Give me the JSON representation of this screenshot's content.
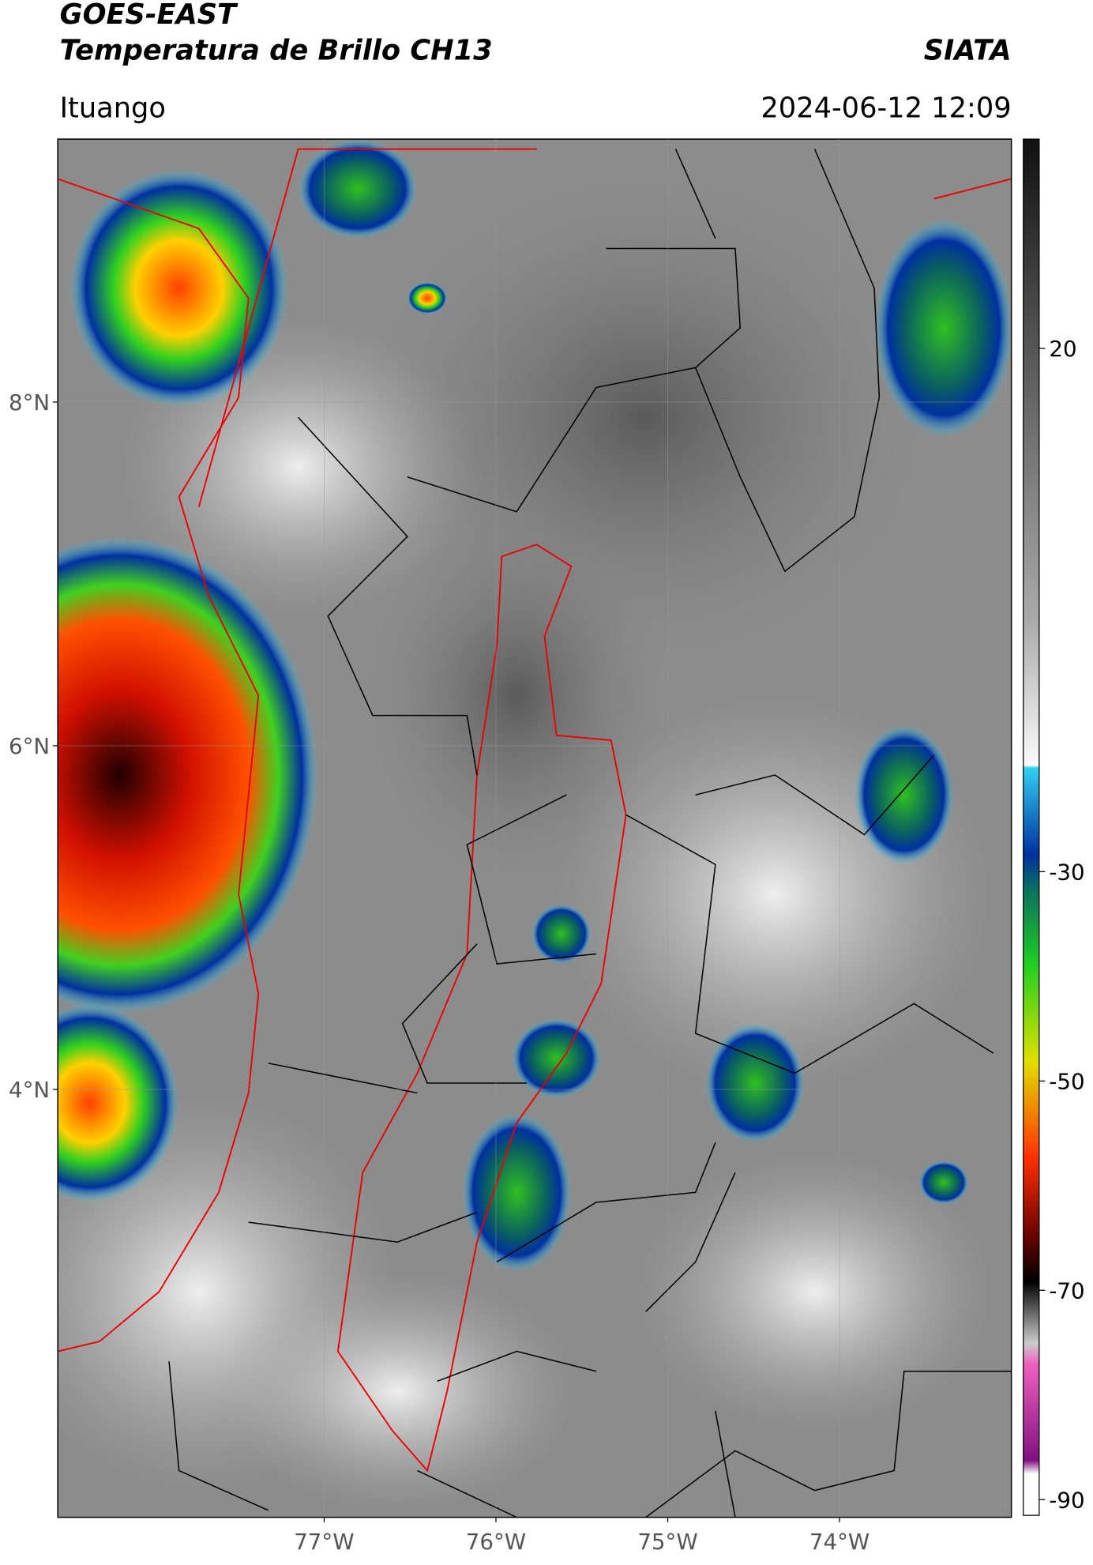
{
  "header": {
    "title_line1": "GOES-EAST",
    "title_line2": "Temperatura de Brillo CH13",
    "agency": "SIATA",
    "location": "Ituango",
    "timestamp": "2024-06-12 12:09"
  },
  "map": {
    "xlim": [
      -78.55,
      -73.0
    ],
    "ylim": [
      1.51,
      9.53
    ],
    "lat_ticks": [
      {
        "value": 8,
        "label": "8°N"
      },
      {
        "value": 6,
        "label": "6°N"
      },
      {
        "value": 4,
        "label": "4°N"
      }
    ],
    "lon_ticks": [
      {
        "value": -77,
        "label": "77°W"
      },
      {
        "value": -76,
        "label": "76°W"
      },
      {
        "value": -75,
        "label": "75°W"
      },
      {
        "value": -74,
        "label": "74°W"
      }
    ]
  },
  "colorbar": {
    "lim": [
      -91.5,
      40
    ],
    "ticks": [
      20,
      -30,
      -50,
      -70,
      -90
    ]
  }
}
